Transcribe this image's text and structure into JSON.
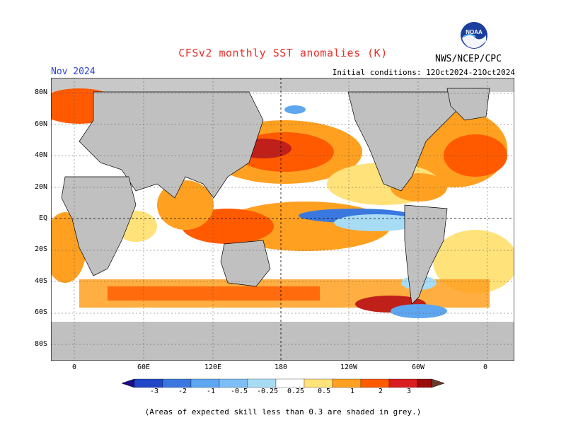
{
  "header": {
    "title": "CFSv2 monthly SST anomalies (K)",
    "month": "Nov 2024",
    "initial_conditions": "Initial conditions: 12Oct2024-21Oct2024",
    "agency": "NWS/NCEP/CPC",
    "logo_text": "NOAA"
  },
  "map": {
    "lat_labels": [
      "80N",
      "60N",
      "40N",
      "20N",
      "EQ",
      "20S",
      "40S",
      "60S",
      "80S"
    ],
    "lon_labels": [
      "0",
      "60E",
      "120E",
      "180",
      "120W",
      "60W",
      "0"
    ],
    "ocean_color": "#ffffff",
    "land_color": "#c0c0c0"
  },
  "colorbar": {
    "labels": [
      "-3",
      "-2",
      "-1",
      "-0.5",
      "-0.25",
      "0.25",
      "0.5",
      "1",
      "2",
      "3"
    ],
    "colors": [
      "#1a0f8a",
      "#2246c8",
      "#3a78e0",
      "#5ea6f0",
      "#a8dcf5",
      "#ffffff",
      "#ffe27a",
      "#ffa020",
      "#ff5a00",
      "#d81e1e",
      "#9a0d0d",
      "#6b3a2a"
    ]
  },
  "footnote": "(Areas of expected skill less than 0.3 are shaded in grey.)"
}
